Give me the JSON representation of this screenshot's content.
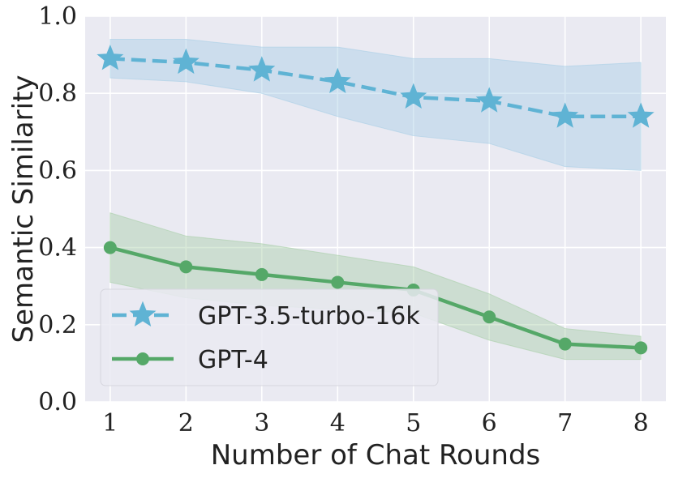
{
  "chart_data": {
    "type": "line",
    "title": "",
    "xlabel": "Number of Chat Rounds",
    "ylabel": "Semantic Similarity",
    "x": [
      1,
      2,
      3,
      4,
      5,
      6,
      7,
      8
    ],
    "xlim": [
      0.67,
      8.33
    ],
    "ylim": [
      0.0,
      1.0
    ],
    "xticks": [
      1,
      2,
      3,
      4,
      5,
      6,
      7,
      8
    ],
    "xtick_labels": [
      "1",
      "2",
      "3",
      "4",
      "5",
      "6",
      "7",
      "8"
    ],
    "yticks": [
      0.0,
      0.2,
      0.4,
      0.6,
      0.8,
      1.0
    ],
    "ytick_labels": [
      "0.0",
      "0.2",
      "0.4",
      "0.6",
      "0.8",
      "1.0"
    ],
    "grid": true,
    "legend_position": "lower-left",
    "series": [
      {
        "name": "GPT-3.5-turbo-16k",
        "values": [
          0.89,
          0.88,
          0.86,
          0.83,
          0.79,
          0.78,
          0.74,
          0.74
        ],
        "lower": [
          0.84,
          0.83,
          0.8,
          0.74,
          0.69,
          0.67,
          0.61,
          0.6
        ],
        "upper": [
          0.94,
          0.94,
          0.92,
          0.92,
          0.89,
          0.89,
          0.87,
          0.88
        ],
        "color": "#5fb3d4",
        "band_color": "#a9cfe6",
        "linestyle": "dashed",
        "marker": "star"
      },
      {
        "name": "GPT-4",
        "values": [
          0.4,
          0.35,
          0.33,
          0.31,
          0.29,
          0.22,
          0.15,
          0.14
        ],
        "lower": [
          0.31,
          0.27,
          0.25,
          0.24,
          0.23,
          0.16,
          0.11,
          0.11
        ],
        "upper": [
          0.49,
          0.43,
          0.41,
          0.38,
          0.35,
          0.28,
          0.19,
          0.17
        ],
        "color": "#55a868",
        "band_color": "#a8cfa8",
        "linestyle": "solid",
        "marker": "circle"
      }
    ]
  }
}
